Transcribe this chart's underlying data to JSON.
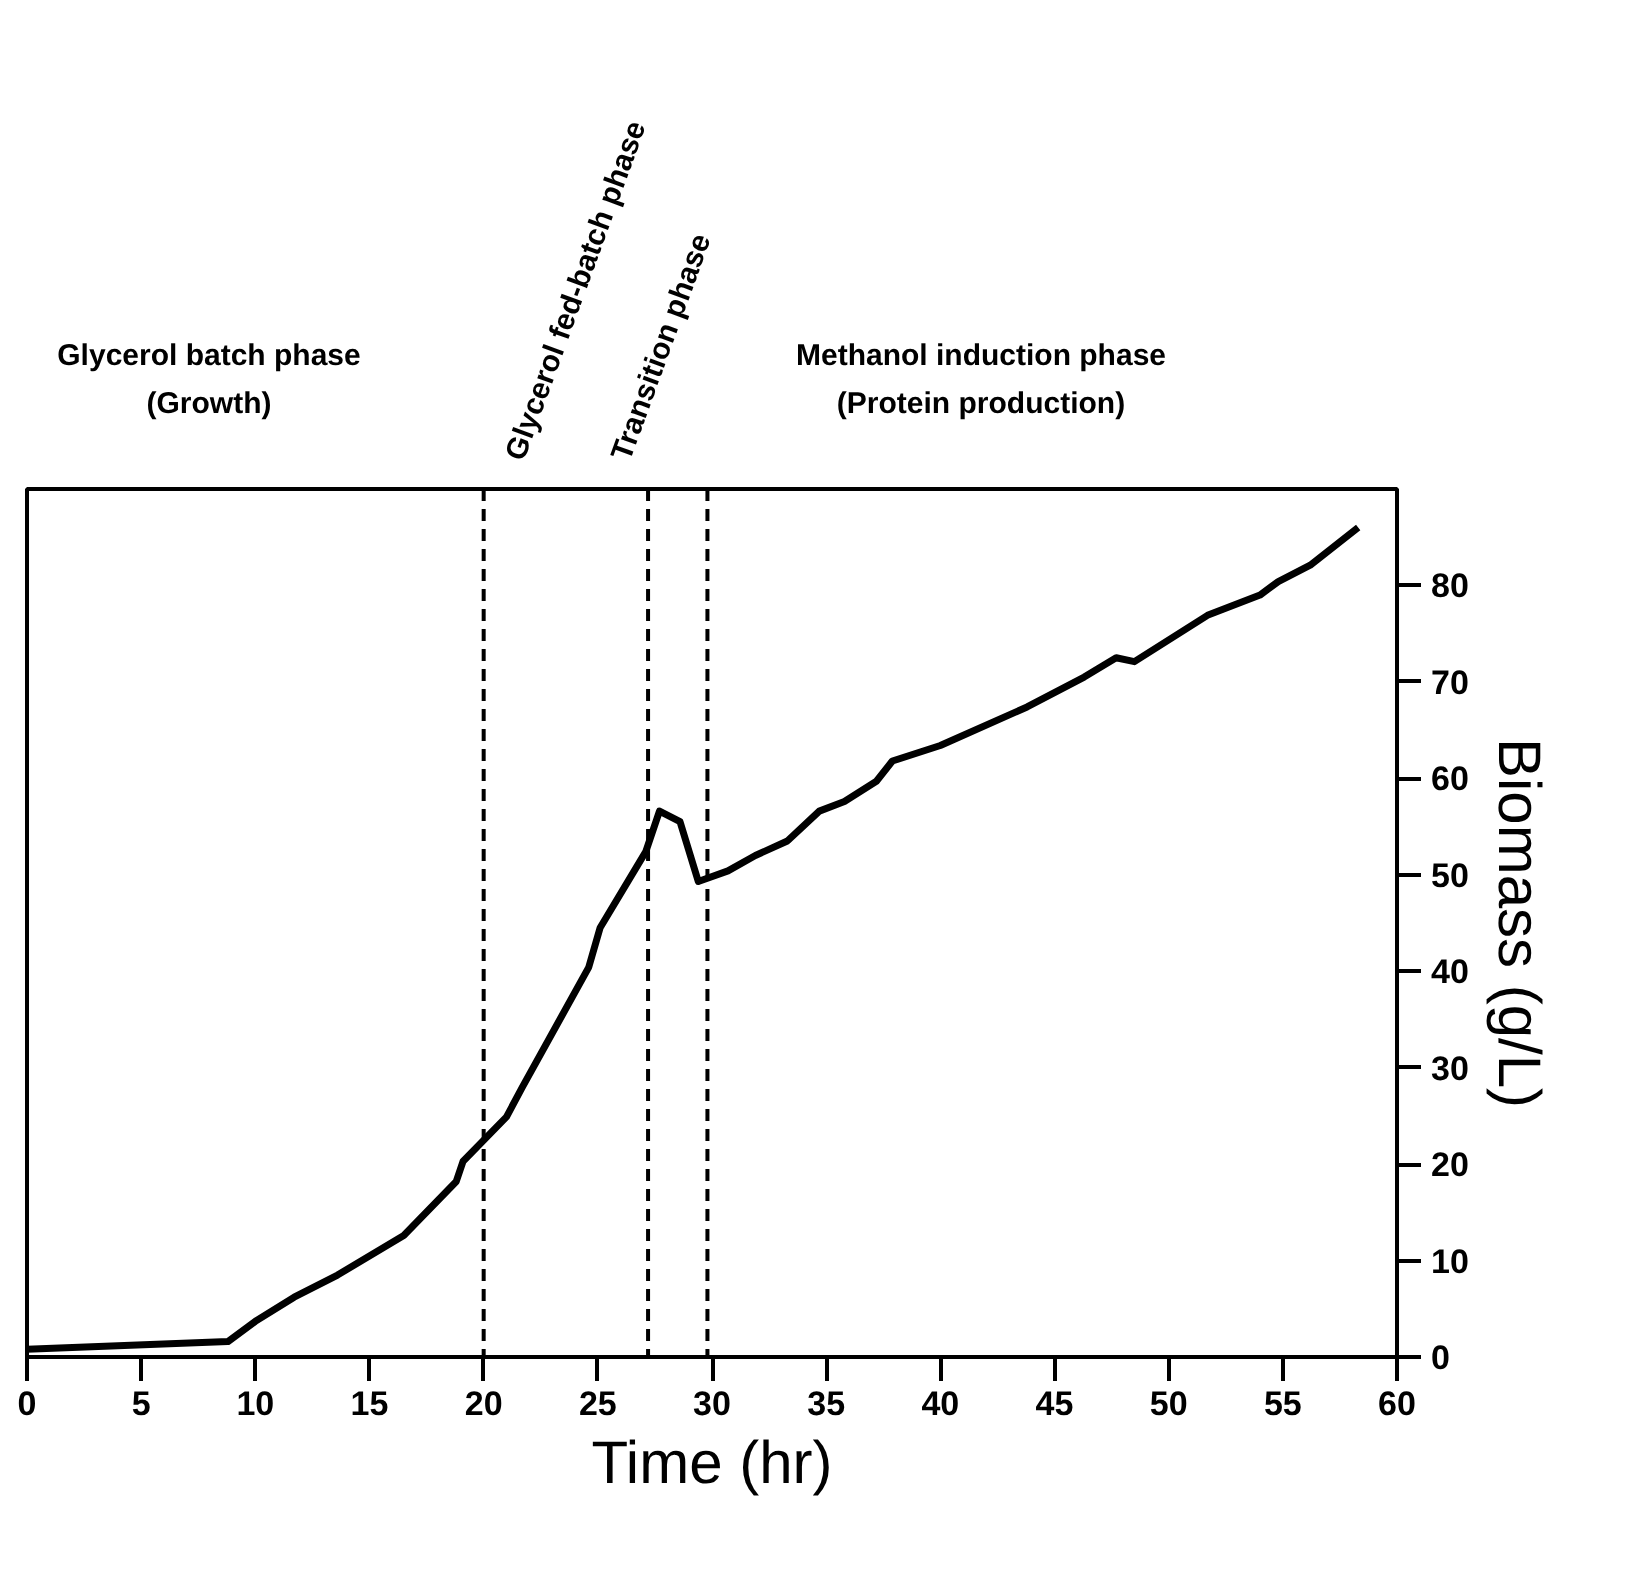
{
  "chart_data": {
    "type": "line",
    "xlabel": "Time (hr)",
    "ylabel": "Biomass (g/L)",
    "annotations": [
      "Glycerol batch phase\n(Growth)",
      "Glycerol fed-batch phase",
      "Transition phase",
      "Methanol induction phase\n(Protein production)"
    ],
    "series": [
      {
        "color": "#000000",
        "x": [
          0,
          8.8,
          10,
          11.7,
          13.6,
          16.5,
          18.8,
          19.1,
          21,
          21.7,
          24.6,
          25.1,
          27.1,
          27.7,
          28.6,
          29.4,
          30.7,
          31.9,
          33.3,
          34.7,
          35.8,
          37.2,
          37.9,
          40,
          43.8,
          46.3,
          47.7,
          48.5,
          51.7,
          54,
          54.8,
          56.2,
          58.3
        ],
        "values": [
          0.8,
          1.6,
          3.7,
          6.2,
          8.5,
          12.6,
          18.2,
          20.3,
          24.9,
          28,
          40.4,
          44.5,
          52.4,
          56.6,
          55.5,
          49.3,
          50.4,
          52,
          53.5,
          56.6,
          57.6,
          59.7,
          61.8,
          63.4,
          67.4,
          70.5,
          72.5,
          72.1,
          76.9,
          79,
          80.4,
          82.1,
          86
        ]
      }
    ],
    "xlim": [
      0,
      60
    ],
    "xticks": [
      0,
      5,
      10,
      15,
      20,
      25,
      30,
      35,
      40,
      45,
      50,
      55,
      60
    ],
    "ylim": [
      0,
      90
    ],
    "yticks": [
      0,
      10,
      20,
      30,
      40,
      50,
      60,
      70,
      80
    ],
    "ref_lines": [
      {
        "axis": "x",
        "value": 20,
        "color": "#000000",
        "line_style": "dashed"
      },
      {
        "axis": "x",
        "value": 27.2,
        "color": "#000000",
        "line_style": "dashed"
      },
      {
        "axis": "x",
        "value": 29.8,
        "color": "#000000",
        "line_style": "dashed"
      }
    ],
    "grid": false,
    "marker": "none",
    "line_style": "solid"
  }
}
